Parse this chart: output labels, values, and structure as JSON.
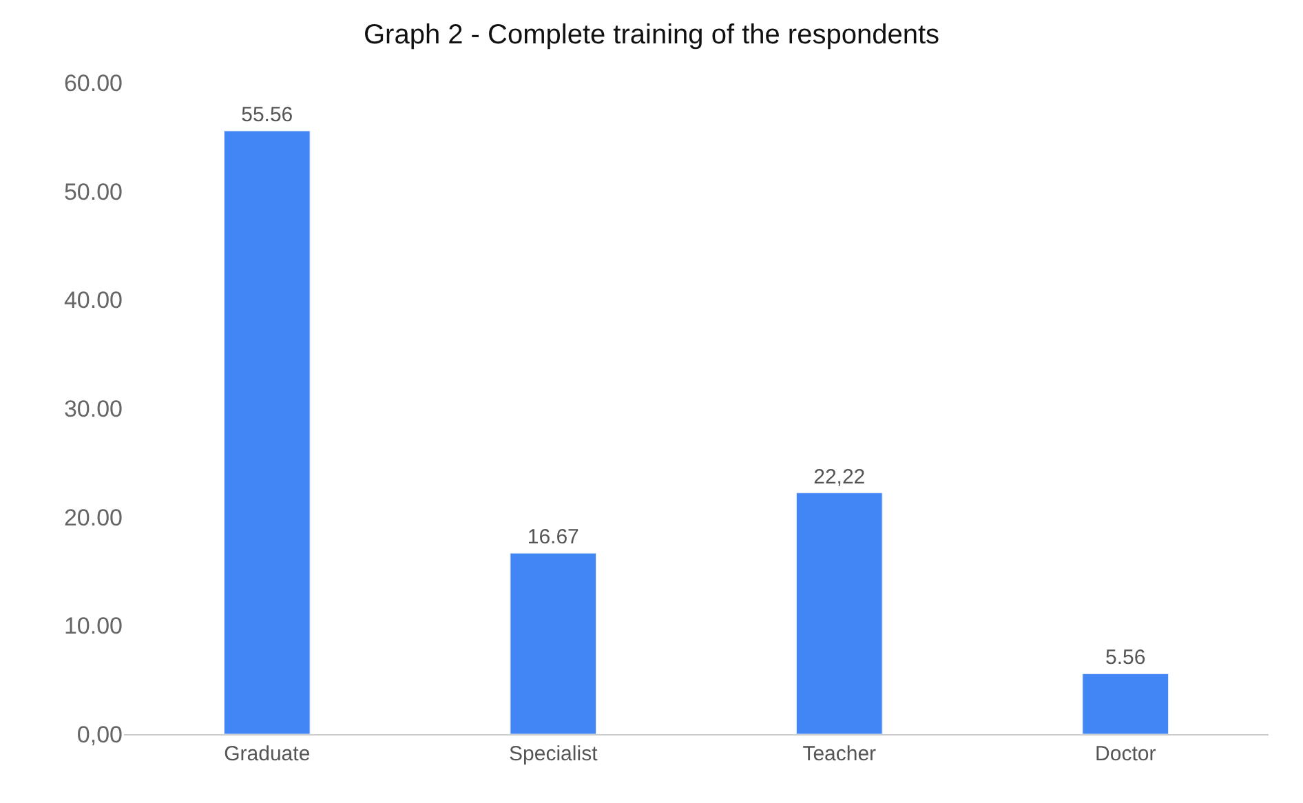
{
  "chart_data": {
    "type": "bar",
    "title": "Graph 2 - Complete training of the respondents",
    "categories": [
      "Graduate",
      "Specialist",
      "Teacher",
      "Doctor"
    ],
    "values": [
      55.56,
      16.67,
      22.22,
      5.56
    ],
    "value_labels": [
      "55.56",
      "16.67",
      "22,22",
      "5.56"
    ],
    "color": "#4285f4",
    "ylim": [
      0,
      60
    ],
    "yticks": [
      {
        "value": 0,
        "label": "0,00"
      },
      {
        "value": 10,
        "label": "10.00"
      },
      {
        "value": 20,
        "label": "20.00"
      },
      {
        "value": 30,
        "label": "30.00"
      },
      {
        "value": 40,
        "label": "40.00"
      },
      {
        "value": 50,
        "label": "50.00"
      },
      {
        "value": 60,
        "label": "60.00"
      }
    ],
    "grid": false
  }
}
